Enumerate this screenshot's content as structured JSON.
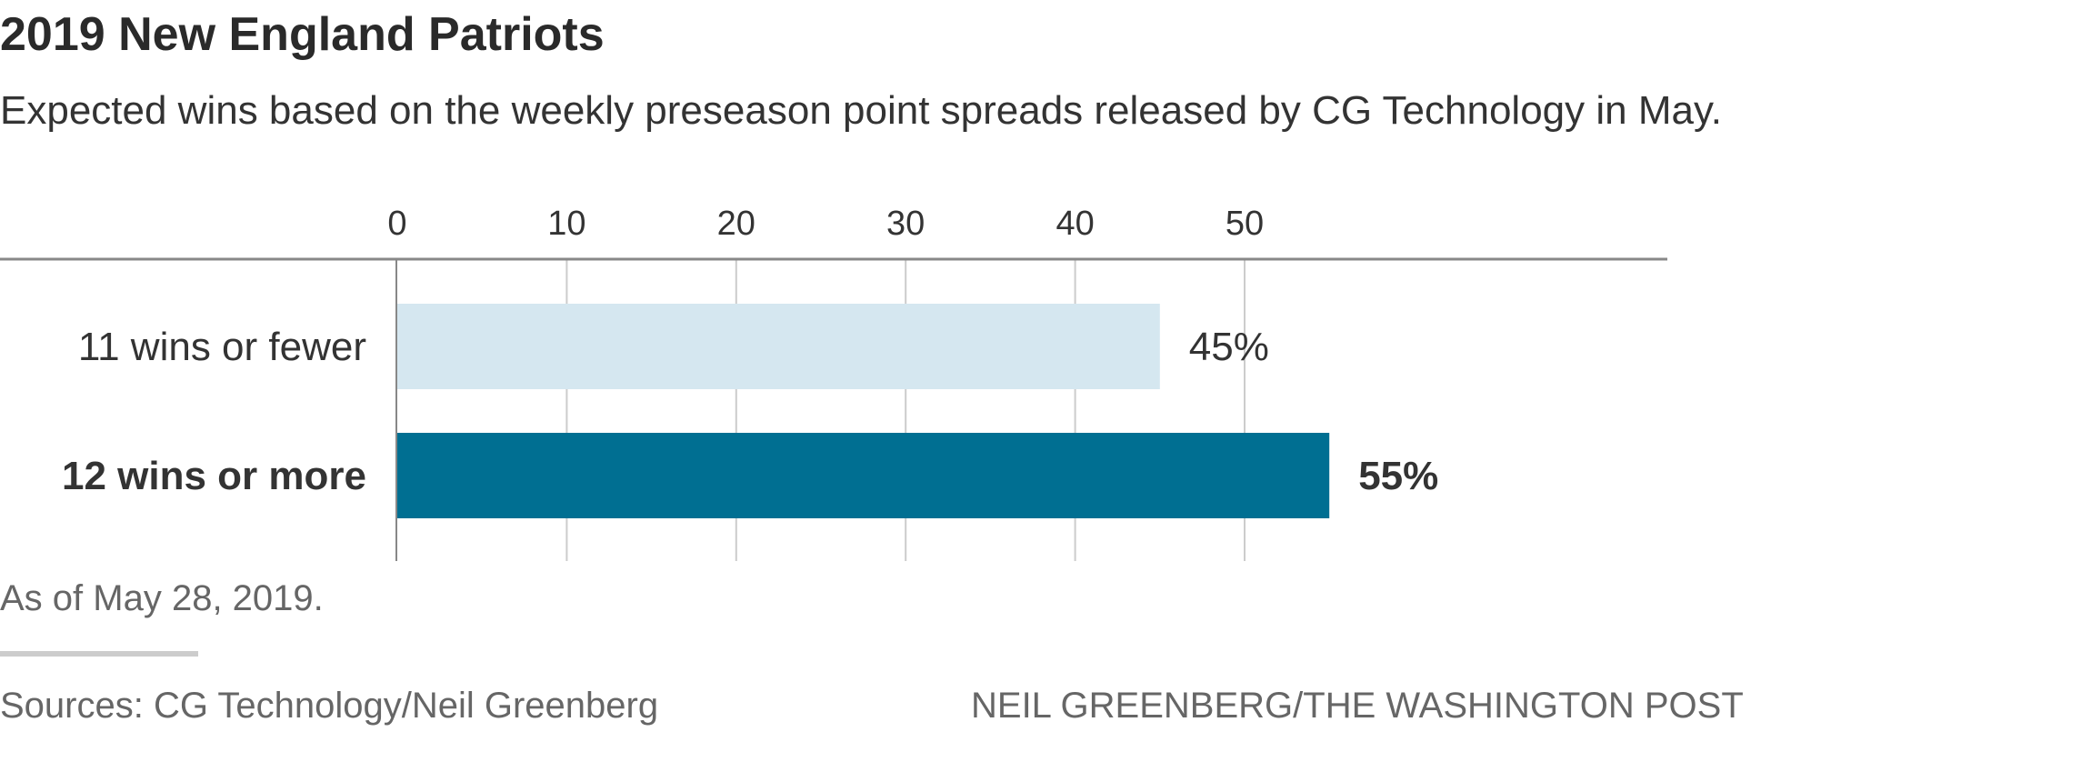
{
  "chart_data": {
    "type": "bar",
    "orientation": "horizontal",
    "title": "2019 New England Patriots",
    "subtitle": "Expected wins based on the weekly preseason point spreads released by CG Technology in May.",
    "categories": [
      "11 wins or fewer",
      "12 wins or more"
    ],
    "values": [
      45,
      55
    ],
    "value_labels": [
      "45%",
      "55%"
    ],
    "xticks": [
      0,
      10,
      20,
      30,
      40,
      50
    ],
    "xtick_labels": [
      "0",
      "10",
      "20",
      "30",
      "40",
      "50"
    ],
    "xlim": [
      0,
      75
    ],
    "colors": [
      "#d5e7f0",
      "#006f92"
    ],
    "highlight_index": 1,
    "xlabel": "",
    "ylabel": ""
  },
  "note": "As of May 28, 2019.",
  "source": "Sources: CG Technology/Neil Greenberg",
  "credit": "NEIL GREENBERG/THE WASHINGTON POST"
}
